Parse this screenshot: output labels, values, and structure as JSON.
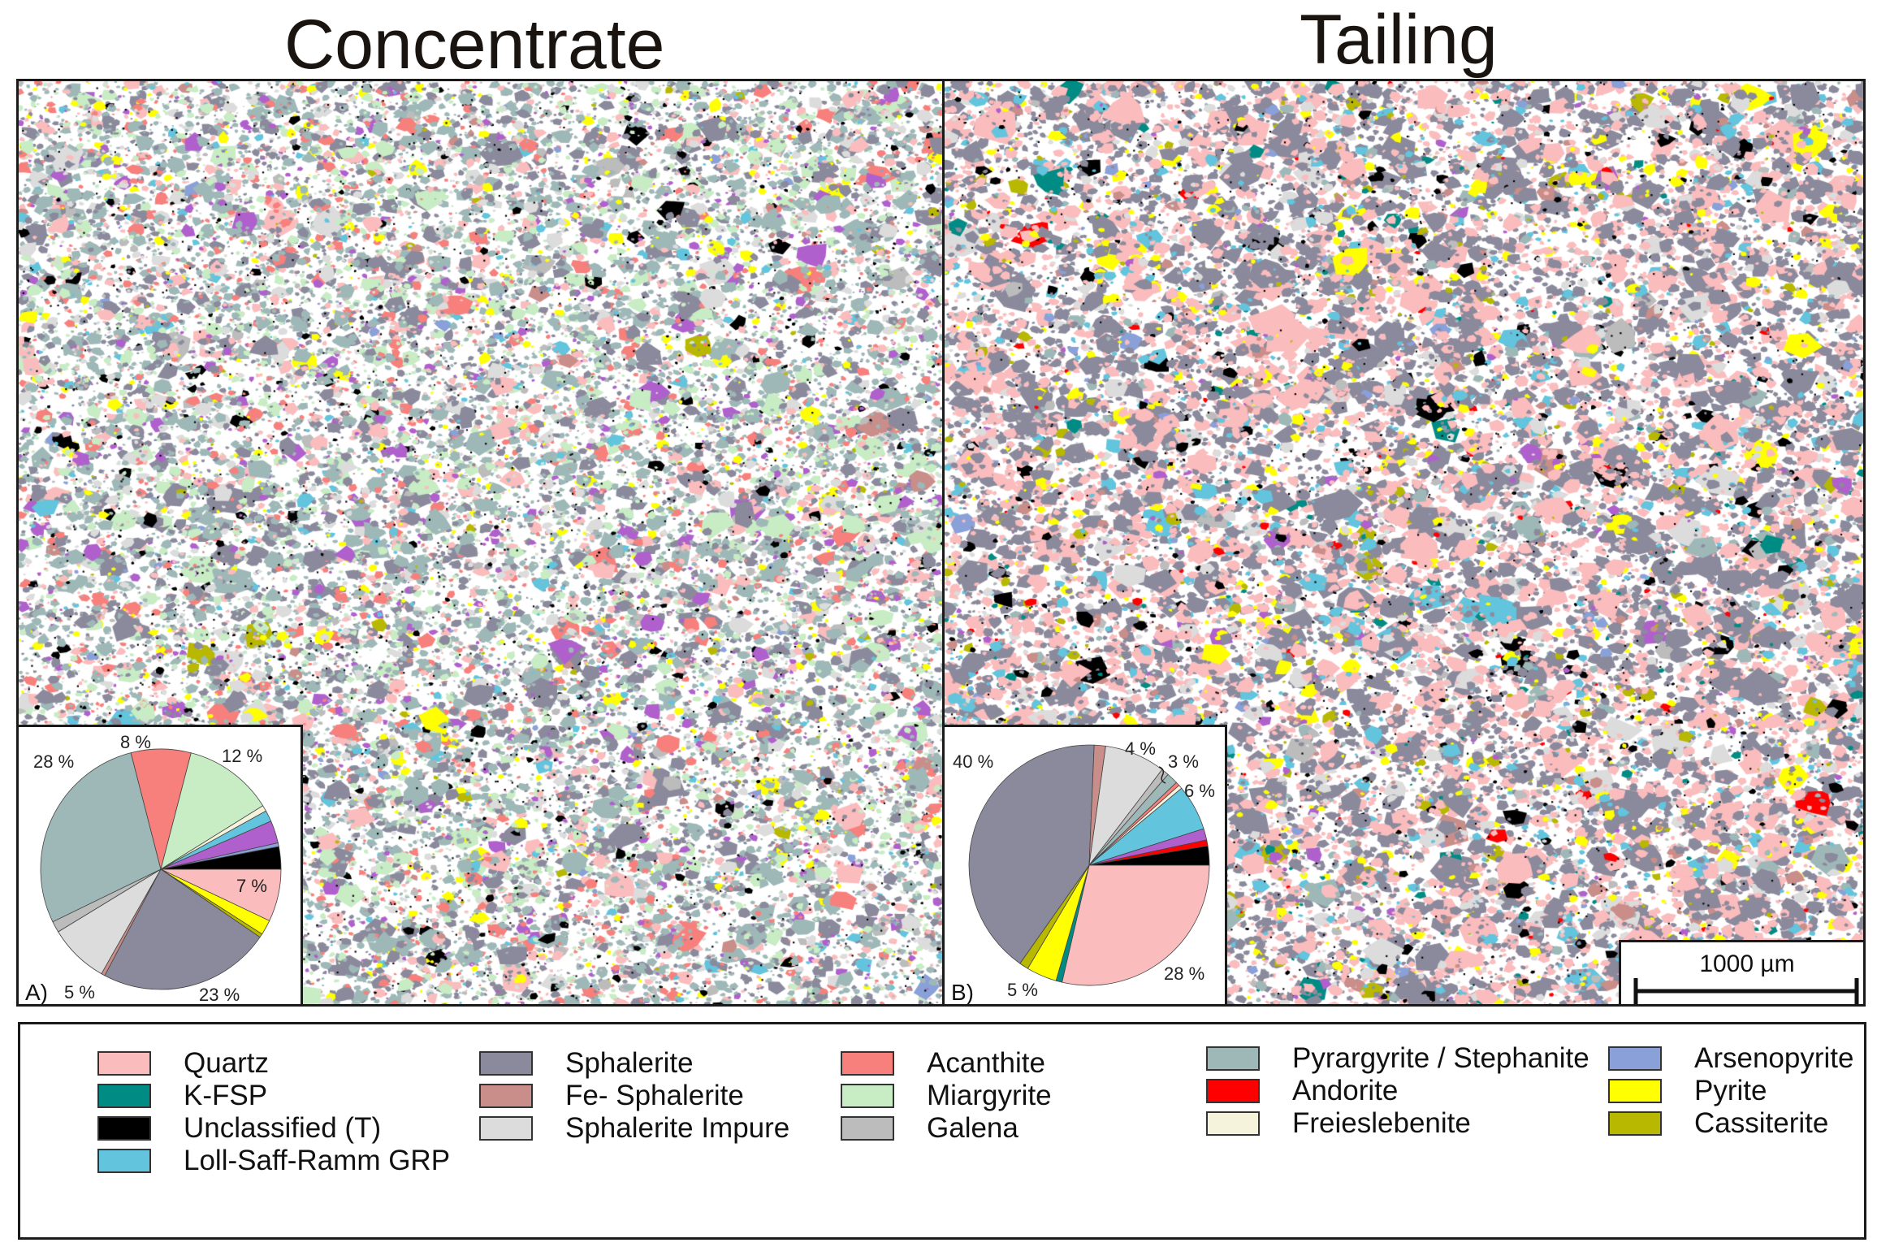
{
  "titles": {
    "left": "Concentrate",
    "right": "Tailing"
  },
  "panels": [
    {
      "id": "A",
      "tag": "A)",
      "slices": [
        {
          "mineral": "Quartz",
          "pct": 7
        },
        {
          "mineral": "Pyrite",
          "pct": 2
        },
        {
          "mineral": "Cassiterite",
          "pct": 0.5
        },
        {
          "mineral": "Sphalerite",
          "pct": 23
        },
        {
          "mineral": "Fe- Sphalerite",
          "pct": 0.5
        },
        {
          "mineral": "Sphalerite Impure",
          "pct": 8
        },
        {
          "mineral": "Galena",
          "pct": 1.5
        },
        {
          "mineral": "Pyrargyrite / Stephanite",
          "pct": 28
        },
        {
          "mineral": "Acanthite",
          "pct": 8
        },
        {
          "mineral": "Miargyrite",
          "pct": 12
        },
        {
          "mineral": "Freieslebenite",
          "pct": 0.8
        },
        {
          "mineral": "Loll-Saff-Ramm GRP",
          "pct": 1.5
        },
        {
          "mineral": "Unclassified purple",
          "pct": 3
        },
        {
          "mineral": "Arsenopyrite",
          "pct": 0.5
        },
        {
          "mineral": "Unclassified (T)",
          "pct": 3
        }
      ],
      "labels": [
        {
          "text": "28 %"
        },
        {
          "text": "8 %"
        },
        {
          "text": "12 %"
        },
        {
          "text": "7 %"
        },
        {
          "text": "5 %"
        },
        {
          "text": "23 %"
        }
      ]
    },
    {
      "id": "B",
      "tag": "B)",
      "slices": [
        {
          "mineral": "Quartz",
          "pct": 28
        },
        {
          "mineral": "K-FSP",
          "pct": 0.8
        },
        {
          "mineral": "Pyrite",
          "pct": 4
        },
        {
          "mineral": "Cassiterite",
          "pct": 1.2
        },
        {
          "mineral": "Sphalerite",
          "pct": 40
        },
        {
          "mineral": "Fe- Sphalerite",
          "pct": 1.5
        },
        {
          "mineral": "Sphalerite Impure",
          "pct": 8
        },
        {
          "mineral": "Galena",
          "pct": 1
        },
        {
          "mineral": "Pyrargyrite / Stephanite",
          "pct": 1.5
        },
        {
          "mineral": "Acanthite",
          "pct": 0.5
        },
        {
          "mineral": "Freieslebenite",
          "pct": 0.5
        },
        {
          "mineral": "Loll-Saff-Ramm GRP",
          "pct": 6
        },
        {
          "mineral": "Unclassified purple",
          "pct": 1.5
        },
        {
          "mineral": "Andorite",
          "pct": 0.8
        },
        {
          "mineral": "Unclassified (T)",
          "pct": 2.5
        }
      ],
      "labels": [
        {
          "text": "40 %"
        },
        {
          "text": "4 %"
        },
        {
          "text": "3 %"
        },
        {
          "text": "6 %"
        },
        {
          "text": "28 %"
        },
        {
          "text": "5 %"
        }
      ]
    }
  ],
  "scale_bar": {
    "label": "1000 µm"
  },
  "legend": {
    "items": [
      {
        "label": "Quartz",
        "color": "#fbbcbd"
      },
      {
        "label": "K-FSP",
        "color": "#008c84"
      },
      {
        "label": "Unclassified (T)",
        "color": "#000000"
      },
      {
        "label": "Loll-Saff-Ramm GRP",
        "color": "#62c4dd"
      },
      {
        "label": "Sphalerite",
        "color": "#8b8a9c"
      },
      {
        "label": "Fe- Sphalerite",
        "color": "#c98e8a"
      },
      {
        "label": "Sphalerite Impure",
        "color": "#dcdcdc"
      },
      {
        "label": "Acanthite",
        "color": "#f7807c"
      },
      {
        "label": "Miargyrite",
        "color": "#c8ecc4"
      },
      {
        "label": "Galena",
        "color": "#bcbcbc"
      },
      {
        "label": "Pyrargyrite / Stephanite",
        "color": "#9eb8b8"
      },
      {
        "label": "Andorite",
        "color": "#ff0000"
      },
      {
        "label": "Freieslebenite",
        "color": "#f5f3dc"
      },
      {
        "label": "Arsenopyrite",
        "color": "#8aa0d8"
      },
      {
        "label": "Pyrite",
        "color": "#ffff00"
      },
      {
        "label": "Cassiterite",
        "color": "#b8b800"
      }
    ],
    "extra_colors": {
      "Unclassified purple": "#b060cc"
    }
  },
  "map_mix": {
    "concentrate": [
      {
        "color": "#9eb8b8",
        "w": 26
      },
      {
        "color": "#8b8a9c",
        "w": 20
      },
      {
        "color": "#c8ecc4",
        "w": 12
      },
      {
        "color": "#fbbcbd",
        "w": 9
      },
      {
        "color": "#f7807c",
        "w": 7
      },
      {
        "color": "#dcdcdc",
        "w": 8
      },
      {
        "color": "#b060cc",
        "w": 4
      },
      {
        "color": "#ffff00",
        "w": 3
      },
      {
        "color": "#62c4dd",
        "w": 2
      },
      {
        "color": "#bcbcbc",
        "w": 2
      },
      {
        "color": "#c98e8a",
        "w": 1
      },
      {
        "color": "#000000",
        "w": 2
      },
      {
        "color": "#b8b800",
        "w": 0.5
      },
      {
        "color": "#8aa0d8",
        "w": 0.5
      }
    ],
    "tailing": [
      {
        "color": "#8b8a9c",
        "w": 38
      },
      {
        "color": "#fbbcbd",
        "w": 30
      },
      {
        "color": "#dcdcdc",
        "w": 6
      },
      {
        "color": "#62c4dd",
        "w": 5
      },
      {
        "color": "#ffff00",
        "w": 4
      },
      {
        "color": "#b8b800",
        "w": 1.5
      },
      {
        "color": "#9eb8b8",
        "w": 2
      },
      {
        "color": "#c98e8a",
        "w": 1.5
      },
      {
        "color": "#008c84",
        "w": 1
      },
      {
        "color": "#000000",
        "w": 2
      },
      {
        "color": "#b060cc",
        "w": 1
      },
      {
        "color": "#ff0000",
        "w": 0.5
      },
      {
        "color": "#8aa0d8",
        "w": 0.5
      },
      {
        "color": "#bcbcbc",
        "w": 1
      }
    ]
  }
}
